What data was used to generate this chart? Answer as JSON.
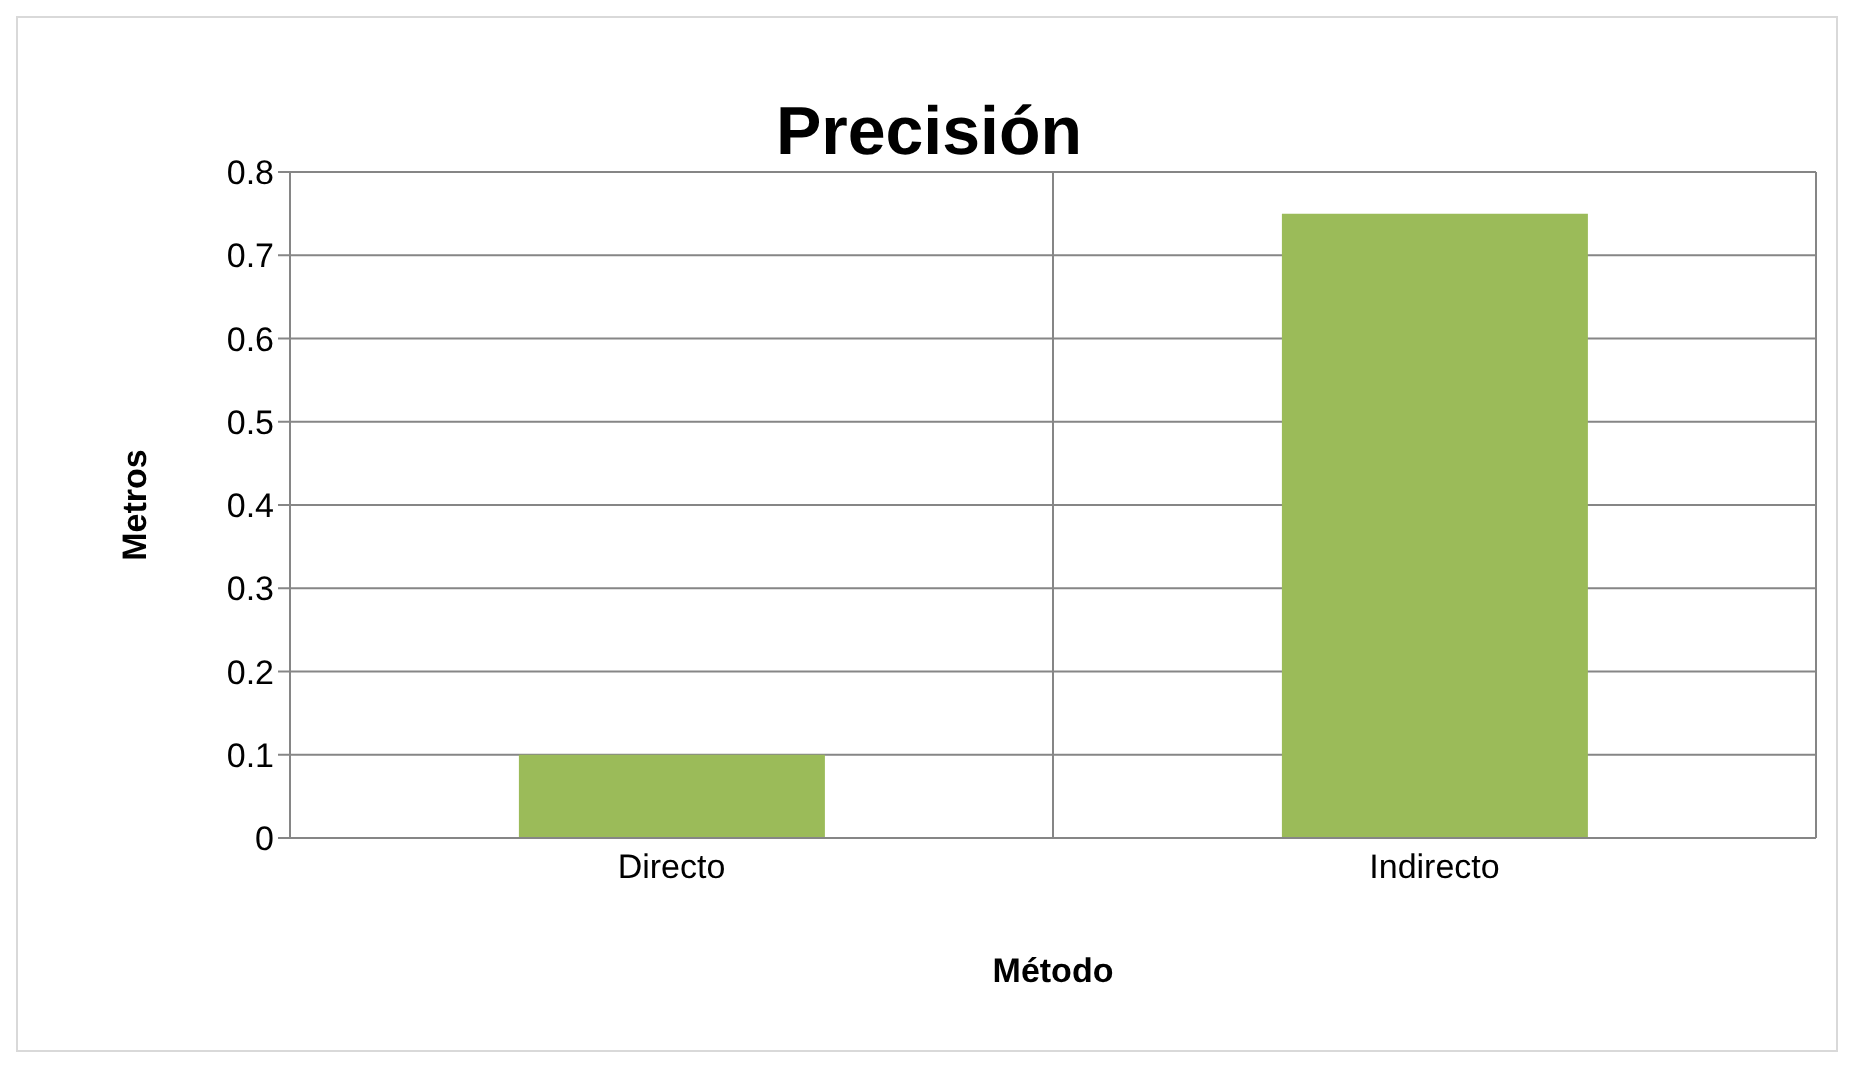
{
  "chart_data": {
    "type": "bar",
    "title": "Precisión",
    "xlabel": "Método",
    "ylabel": "Metros",
    "categories": [
      "Directo",
      "Indirecto"
    ],
    "values": [
      0.1,
      0.75
    ],
    "color": "#9bbb59",
    "ylim": [
      0,
      0.8
    ],
    "yticks": [
      0,
      0.1,
      0.2,
      0.3,
      0.4,
      0.5,
      0.6,
      0.7,
      0.8
    ],
    "grid": true,
    "legend": false
  }
}
